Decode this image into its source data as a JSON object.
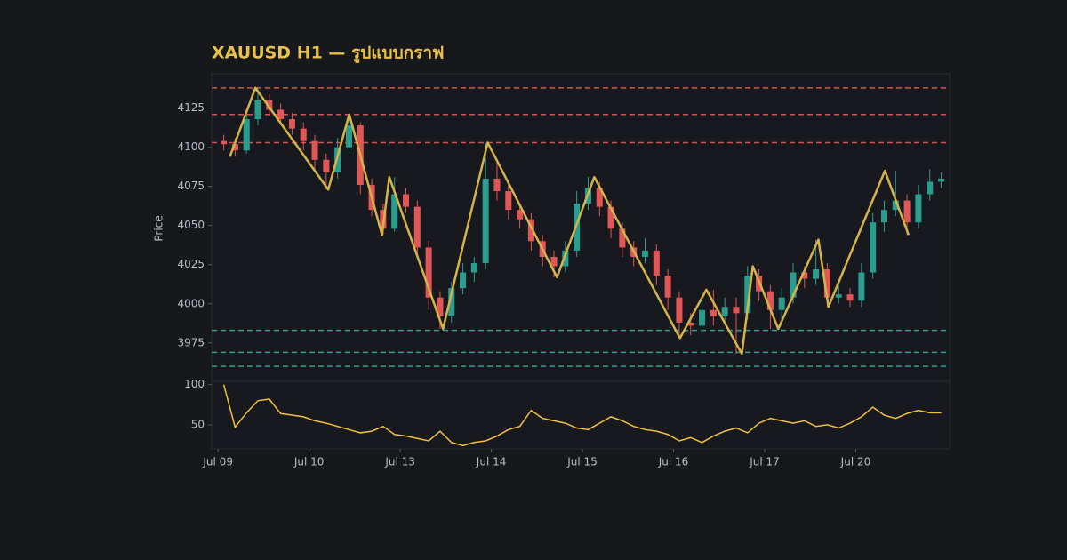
{
  "chart_data": [
    {
      "type": "candlestick",
      "title": "XAUUSD H1 — รูปแบบกราฟ",
      "ylabel": "Price",
      "x": [
        0.0625,
        0.1875,
        0.3125,
        0.4375,
        0.5625,
        0.6875,
        0.8125,
        0.9375,
        1.0625,
        1.1875,
        1.3125,
        1.4375,
        1.5625,
        1.6875,
        1.8125,
        1.9375,
        2.0625,
        2.1875,
        2.3125,
        2.4375,
        2.5625,
        2.6875,
        2.8125,
        2.9375,
        3.0625,
        3.1875,
        3.3125,
        3.4375,
        3.5625,
        3.6875,
        3.8125,
        3.9375,
        4.0625,
        4.1875,
        4.3125,
        4.4375,
        4.5625,
        4.6875,
        4.8125,
        4.9375,
        5.0625,
        5.1875,
        5.3125,
        5.4375,
        5.5625,
        5.6875,
        5.8125,
        5.9375,
        6.0625,
        6.1875,
        6.3125,
        6.4375,
        6.5625,
        6.6875,
        6.8125,
        6.9375,
        7.0625,
        7.1875,
        7.3125,
        7.4375,
        7.5625,
        7.6875,
        7.8125,
        7.9375
      ],
      "open": [
        4104,
        4102,
        4098,
        4118,
        4130,
        4124,
        4118,
        4112,
        4104,
        4092,
        4084,
        4100,
        4114,
        4076,
        4060,
        4048,
        4070,
        4062,
        4036,
        4004,
        3992,
        4010,
        4020,
        4026,
        4080,
        4072,
        4060,
        4054,
        4040,
        4030,
        4024,
        4034,
        4064,
        4074,
        4062,
        4048,
        4036,
        4030,
        4034,
        4018,
        4004,
        3988,
        3986,
        3996,
        3992,
        3998,
        3994,
        4018,
        4008,
        3996,
        4004,
        4020,
        4016,
        4022,
        4004,
        4006,
        4002,
        4020,
        4052,
        4060,
        4066,
        4052,
        4070,
        4078
      ],
      "high": [
        4108,
        4106,
        4124,
        4138,
        4134,
        4128,
        4122,
        4116,
        4108,
        4096,
        4106,
        4121,
        4116,
        4080,
        4064,
        4081,
        4074,
        4066,
        4040,
        4008,
        4014,
        4026,
        4030,
        4103,
        4092,
        4076,
        4064,
        4058,
        4044,
        4034,
        4040,
        4072,
        4081,
        4078,
        4066,
        4052,
        4040,
        4042,
        4038,
        4022,
        4008,
        3994,
        4004,
        4009,
        4004,
        4004,
        4024,
        4022,
        4012,
        4010,
        4026,
        4024,
        4041,
        4026,
        4012,
        4010,
        4026,
        4058,
        4066,
        4085,
        4070,
        4076,
        4086,
        4084
      ],
      "low": [
        4098,
        4094,
        4096,
        4114,
        4120,
        4114,
        4108,
        4098,
        4086,
        4073,
        4080,
        4096,
        4070,
        4056,
        4044,
        4046,
        4058,
        4030,
        3996,
        3984,
        3988,
        4006,
        4014,
        4022,
        4066,
        4054,
        4048,
        4034,
        4024,
        4017,
        4020,
        4030,
        4060,
        4056,
        4042,
        4030,
        4024,
        4026,
        4012,
        3996,
        3978,
        3980,
        3982,
        3986,
        3988,
        3968,
        3990,
        4002,
        3984,
        3990,
        4000,
        4010,
        4012,
        3998,
        4000,
        3998,
        3998,
        4016,
        4046,
        4056,
        4044,
        4048,
        4066,
        4074
      ],
      "close": [
        4102,
        4098,
        4118,
        4130,
        4124,
        4118,
        4112,
        4104,
        4092,
        4084,
        4100,
        4114,
        4076,
        4060,
        4048,
        4070,
        4062,
        4036,
        4004,
        3992,
        4010,
        4020,
        4026,
        4080,
        4072,
        4060,
        4054,
        4040,
        4030,
        4024,
        4034,
        4064,
        4074,
        4062,
        4048,
        4036,
        4030,
        4034,
        4018,
        4004,
        3988,
        3986,
        3996,
        3992,
        3998,
        3994,
        4018,
        4008,
        3996,
        4004,
        4020,
        4016,
        4022,
        4004,
        4006,
        4002,
        4020,
        4052,
        4060,
        4066,
        4052,
        4070,
        4078,
        4080
      ],
      "up_color": "#2a9d8f",
      "down_color": "#e05757",
      "zigzag": {
        "color": "#d4b44a",
        "x": [
          0.13,
          0.41,
          1.21,
          1.44,
          1.8,
          1.88,
          2.47,
          2.96,
          3.72,
          4.13,
          5.07,
          5.36,
          5.75,
          5.87,
          6.15,
          6.59,
          6.7,
          7.32,
          7.58
        ],
        "y": [
          4094,
          4138,
          4073,
          4121,
          4044,
          4081,
          3984,
          4103,
          4017,
          4081,
          3978,
          4009,
          3968,
          4024,
          3984,
          4041,
          3998,
          4085,
          4044
        ]
      },
      "levels": [
        {
          "value": 4138,
          "color": "#d05454"
        },
        {
          "value": 4121,
          "color": "#d05454"
        },
        {
          "value": 4103,
          "color": "#d05454"
        },
        {
          "value": 3983,
          "color": "#2f9a96"
        },
        {
          "value": 3969,
          "color": "#2f9a96"
        },
        {
          "value": 3960,
          "color": "#2f9a96"
        }
      ],
      "xlim": [
        -0.07,
        8.03
      ],
      "ylim": [
        3951,
        4147
      ],
      "yticks": [
        3975,
        4000,
        4025,
        4050,
        4075,
        4100,
        4125
      ]
    },
    {
      "type": "line",
      "color": "#f0c040",
      "x": [
        0.0625,
        0.1875,
        0.3125,
        0.4375,
        0.5625,
        0.6875,
        0.8125,
        0.9375,
        1.0625,
        1.1875,
        1.3125,
        1.4375,
        1.5625,
        1.6875,
        1.8125,
        1.9375,
        2.0625,
        2.1875,
        2.3125,
        2.4375,
        2.5625,
        2.6875,
        2.8125,
        2.9375,
        3.0625,
        3.1875,
        3.3125,
        3.4375,
        3.5625,
        3.6875,
        3.8125,
        3.9375,
        4.0625,
        4.1875,
        4.3125,
        4.4375,
        4.5625,
        4.6875,
        4.8125,
        4.9375,
        5.0625,
        5.1875,
        5.3125,
        5.4375,
        5.5625,
        5.6875,
        5.8125,
        5.9375,
        6.0625,
        6.1875,
        6.3125,
        6.4375,
        6.5625,
        6.6875,
        6.8125,
        6.9375,
        7.0625,
        7.1875,
        7.3125,
        7.4375,
        7.5625,
        7.6875,
        7.8125,
        7.9375
      ],
      "values": [
        100,
        47,
        65,
        80,
        82,
        64,
        62,
        60,
        55,
        52,
        48,
        44,
        40,
        42,
        48,
        38,
        36,
        33,
        30,
        42,
        28,
        24,
        28,
        30,
        36,
        44,
        48,
        68,
        58,
        55,
        52,
        46,
        44,
        52,
        60,
        55,
        48,
        44,
        42,
        38,
        30,
        34,
        28,
        36,
        42,
        46,
        40,
        52,
        58,
        55,
        52,
        55,
        48,
        50,
        46,
        52,
        60,
        72,
        62,
        58,
        64,
        68,
        65,
        65
      ],
      "xlim": [
        -0.07,
        8.03
      ],
      "ylim": [
        20,
        103
      ],
      "yticks": [
        50,
        100
      ],
      "xticks": [
        {
          "value": 0,
          "label": "Jul 09"
        },
        {
          "value": 1,
          "label": "Jul 10"
        },
        {
          "value": 2,
          "label": "Jul 13"
        },
        {
          "value": 3,
          "label": "Jul 14"
        },
        {
          "value": 4,
          "label": "Jul 15"
        },
        {
          "value": 5,
          "label": "Jul 16"
        },
        {
          "value": 6,
          "label": "Jul 17"
        },
        {
          "value": 7,
          "label": "Jul 20"
        }
      ]
    }
  ]
}
